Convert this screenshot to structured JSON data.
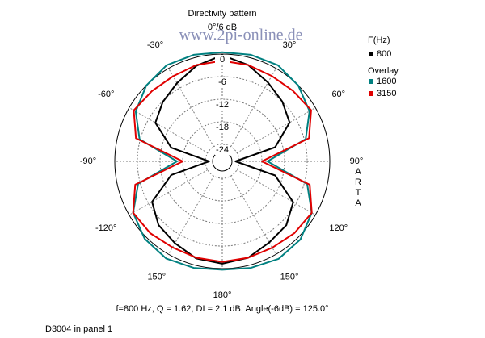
{
  "chart_data": {
    "type": "polar",
    "title": "Directivity pattern",
    "watermark": "www.2pi-online.de",
    "side_label": "ARTA",
    "footer": "f=800 Hz,  Q =  1.62,  DI =   2.1 dB, Angle(-6dB) = 125.0°",
    "panel_label": "D3004 in panel 1",
    "legend_title": "F(Hz)",
    "overlay_title": "Overlay",
    "x": [
      -165,
      -150,
      -135,
      -120,
      -105,
      -90,
      -75,
      -60,
      -45,
      -30,
      -15,
      0,
      15,
      30,
      45,
      60,
      75,
      90,
      105,
      120,
      135,
      150,
      165,
      180
    ],
    "series": [
      {
        "name": "800",
        "color": "#000000",
        "values": [
          -1.8,
          -3.4,
          -4.6,
          -7,
          -14.5,
          -25,
          -14.5,
          -8,
          -6.2,
          -4.5,
          -2.2,
          -0.3,
          -2,
          -4.3,
          -6,
          -7.9,
          -14,
          -25,
          -14,
          -6.8,
          -4.5,
          -3.6,
          -2,
          -1.3
        ]
      },
      {
        "name": "1600",
        "color": "#008080",
        "values": [
          0.8,
          1.3,
          0.6,
          -1.2,
          -5.4,
          -16.5,
          -5.8,
          -2,
          0,
          1,
          0.8,
          0.5,
          0.8,
          1,
          0,
          -1.8,
          -5.6,
          -16.5,
          -5.2,
          -1.1,
          0.8,
          1.4,
          0.8,
          0.3
        ]
      },
      {
        "name": "3150",
        "color": "#e00000",
        "values": [
          -2,
          -2.1,
          -1.5,
          -1.2,
          -4.6,
          -18,
          -4.8,
          -1.4,
          -2.1,
          -2.4,
          -2,
          -1.8,
          -2,
          -2.3,
          -2,
          -1.3,
          -4.7,
          -18,
          -4.5,
          -1.1,
          -1.5,
          -2,
          -2,
          -1.8
        ]
      }
    ],
    "rlim": [
      -28.5,
      0
    ],
    "rticks": [
      0,
      -6,
      -12,
      -18,
      -24
    ],
    "thetaticks": [
      {
        "value": 0,
        "label": "0°/6 dB"
      },
      {
        "value": 30,
        "label": "30°"
      },
      {
        "value": 60,
        "label": "60°"
      },
      {
        "value": 90,
        "label": "90°"
      },
      {
        "value": 120,
        "label": "120°"
      },
      {
        "value": 150,
        "label": "150°"
      },
      {
        "value": 180,
        "label": "180°"
      },
      {
        "value": -150,
        "label": "-150°"
      },
      {
        "value": -120,
        "label": "-120°"
      },
      {
        "value": -90,
        "label": "-90°"
      },
      {
        "value": -60,
        "label": "-60°"
      },
      {
        "value": -30,
        "label": "-30°"
      }
    ]
  }
}
